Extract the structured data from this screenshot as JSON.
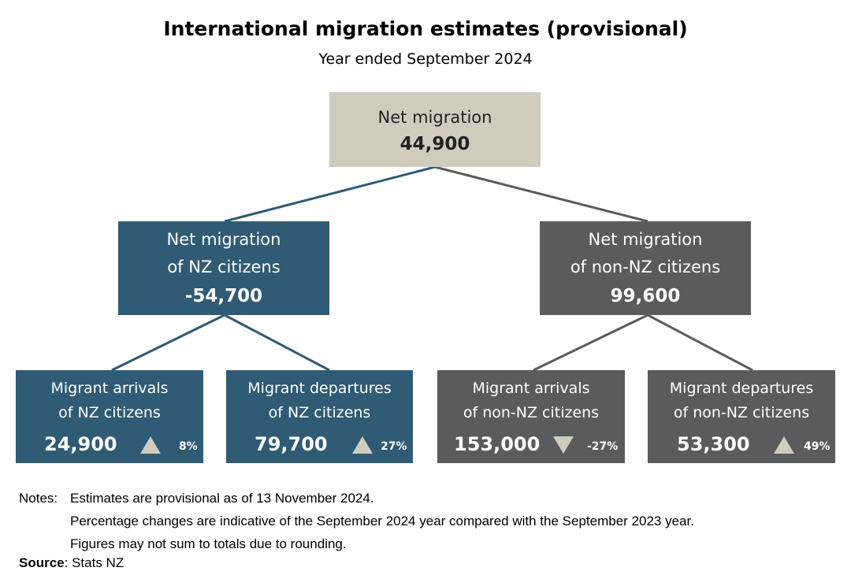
{
  "title": "International migration estimates (provisional)",
  "subtitle": "Year ended September 2024",
  "colors": {
    "top_box": "#cfccbd",
    "nz_citizens": "#2f5b74",
    "non_nz_citizens": "#595b5d",
    "connector": "#2f5b74",
    "triangle": "#cfccbd"
  },
  "root": {
    "label": "Net migration",
    "value": "44,900"
  },
  "nz": {
    "label_line1": "Net migration",
    "label_line2": "of NZ citizens",
    "value": "-54,700",
    "arrivals": {
      "line1": "Migrant arrivals",
      "line2": "of NZ citizens",
      "value": "24,900",
      "direction": "up",
      "change": "8%"
    },
    "departures": {
      "line1": "Migrant departures",
      "line2": "of NZ citizens",
      "value": "79,700",
      "direction": "up",
      "change": "27%"
    }
  },
  "non_nz": {
    "label_line1": "Net migration",
    "label_line2": "of non-NZ citizens",
    "value": "99,600",
    "arrivals": {
      "line1": "Migrant arrivals",
      "line2": "of non-NZ citizens",
      "value": "153,000",
      "direction": "down",
      "change": "-27%"
    },
    "departures": {
      "line1": "Migrant departures",
      "line2": "of non-NZ citizens",
      "value": "53,300",
      "direction": "up",
      "change": "49%"
    }
  },
  "notes": {
    "heading": "Notes:",
    "line1": "Estimates are provisional as of 13 November 2024.",
    "line2": "Percentage changes are indicative of the September 2024 year compared with the September 2023 year.",
    "line3": "Figures may not sum to totals due to rounding."
  },
  "source": {
    "label": "Source",
    "text": ": Stats NZ"
  }
}
